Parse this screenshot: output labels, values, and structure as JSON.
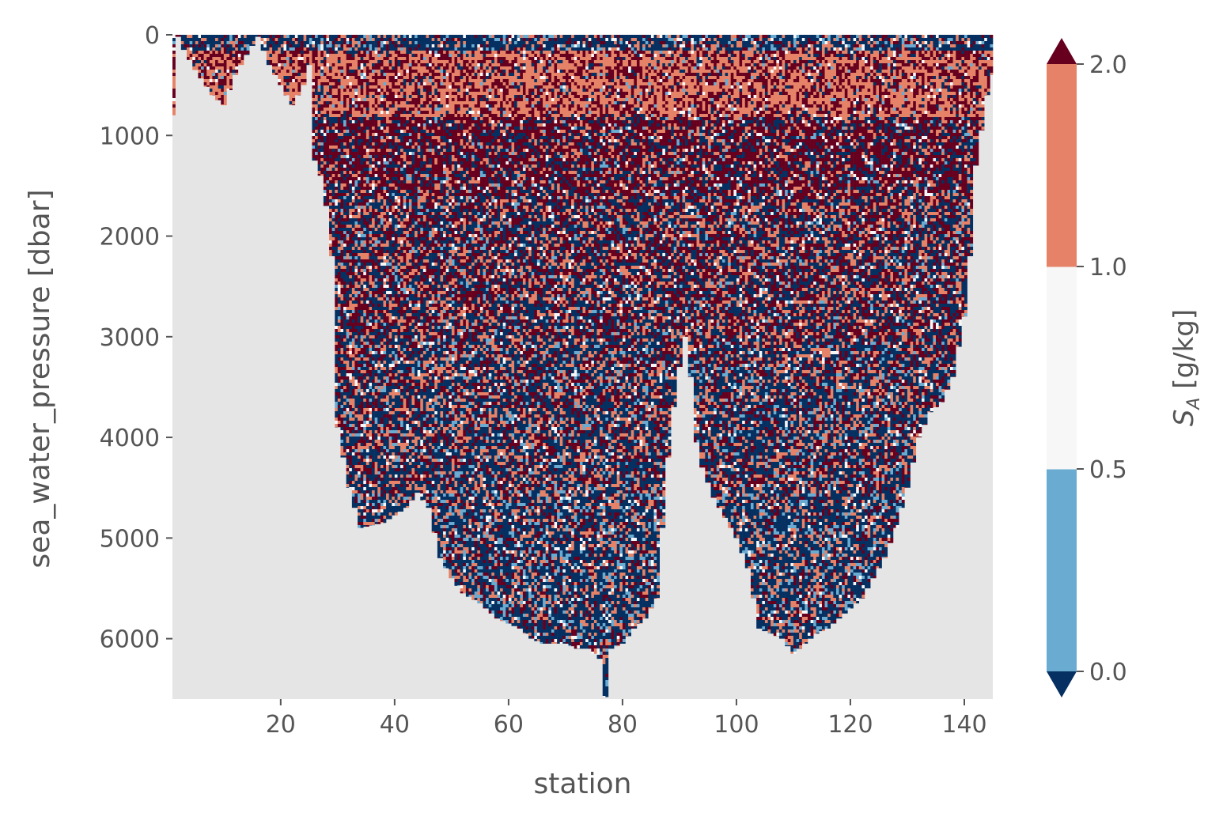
{
  "chart_data": {
    "type": "heatmap",
    "title": "",
    "xlabel": "station",
    "ylabel": "sea_water_pressure [dbar]",
    "xlim": [
      1,
      145
    ],
    "ylim": [
      6600,
      0
    ],
    "y_inverted": true,
    "xticks": [
      20,
      40,
      60,
      80,
      100,
      120,
      140
    ],
    "yticks": [
      0,
      1000,
      2000,
      3000,
      4000,
      5000,
      6000
    ],
    "background_color": "#e5e5e5",
    "grid": false,
    "colorbar": {
      "label_main": "S",
      "label_sub": "A",
      "label_units": " [g/kg]",
      "levels": [
        0.0,
        0.5,
        1.0,
        2.0
      ],
      "tick_labels": [
        "0.0",
        "0.5",
        "1.0",
        "2.0"
      ],
      "extend": "both",
      "under_color": "#053061",
      "over_color": "#67001f",
      "bin_colors": [
        "#6aabd2",
        "#f7f7f7",
        "#e58267"
      ],
      "position": "right"
    },
    "bottom_profile": {
      "description_units": "station vs max pressure (dbar)",
      "station": [
        1,
        2,
        3,
        5,
        8,
        10,
        12,
        14,
        16,
        18,
        20,
        22,
        24,
        25,
        26,
        27,
        28,
        29,
        30,
        32,
        34,
        38,
        42,
        44,
        46,
        48,
        50,
        52,
        55,
        58,
        60,
        62,
        64,
        66,
        68,
        70,
        72,
        74,
        76,
        77,
        78,
        80,
        82,
        84,
        86,
        88,
        89,
        90,
        91,
        92,
        93,
        94,
        96,
        98,
        100,
        102,
        104,
        106,
        108,
        110,
        112,
        114,
        116,
        118,
        120,
        122,
        124,
        126,
        128,
        130,
        132,
        134,
        136,
        138,
        140,
        141,
        142,
        144,
        145
      ],
      "pressure": [
        800,
        20,
        150,
        350,
        600,
        700,
        400,
        200,
        20,
        300,
        500,
        700,
        500,
        300,
        1250,
        1400,
        1700,
        2200,
        3900,
        4500,
        4900,
        4850,
        4700,
        4550,
        4700,
        5200,
        5400,
        5550,
        5650,
        5800,
        5850,
        5900,
        6000,
        6050,
        6050,
        6050,
        6100,
        6100,
        6200,
        6580,
        6100,
        6050,
        5900,
        5800,
        5600,
        4200,
        3700,
        3300,
        3000,
        3400,
        4050,
        4300,
        4600,
        4800,
        5000,
        5300,
        5900,
        5950,
        6000,
        6150,
        6050,
        5950,
        5900,
        5800,
        5700,
        5600,
        5400,
        5200,
        4900,
        4500,
        4000,
        3750,
        3650,
        3400,
        2800,
        2200,
        1300,
        600,
        400
      ]
    },
    "data_bands": [
      {
        "name_range_dbar": [
          0,
          150
        ],
        "weights": {
          "lt0": 0.55,
          "b0": 0.1,
          "b1": 0.05,
          "b2": 0.15,
          "gt2": 0.15
        }
      },
      {
        "name_range_dbar": [
          150,
          800
        ],
        "weights": {
          "lt0": 0.08,
          "b0": 0.03,
          "b1": 0.03,
          "b2": 0.5,
          "gt2": 0.36
        }
      },
      {
        "name_range_dbar": [
          800,
          1600
        ],
        "weights": {
          "lt0": 0.25,
          "b0": 0.04,
          "b1": 0.04,
          "b2": 0.15,
          "gt2": 0.52
        }
      },
      {
        "name_range_dbar": [
          1600,
          3000
        ],
        "weights": {
          "lt0": 0.35,
          "b0": 0.05,
          "b1": 0.04,
          "b2": 0.22,
          "gt2": 0.34
        }
      },
      {
        "name_range_dbar": [
          3000,
          4500
        ],
        "weights": {
          "lt0": 0.42,
          "b0": 0.08,
          "b1": 0.04,
          "b2": 0.22,
          "gt2": 0.24
        }
      },
      {
        "name_range_dbar": [
          4500,
          6600
        ],
        "weights": {
          "lt0": 0.48,
          "b0": 0.12,
          "b1": 0.05,
          "b2": 0.18,
          "gt2": 0.17
        }
      }
    ]
  }
}
